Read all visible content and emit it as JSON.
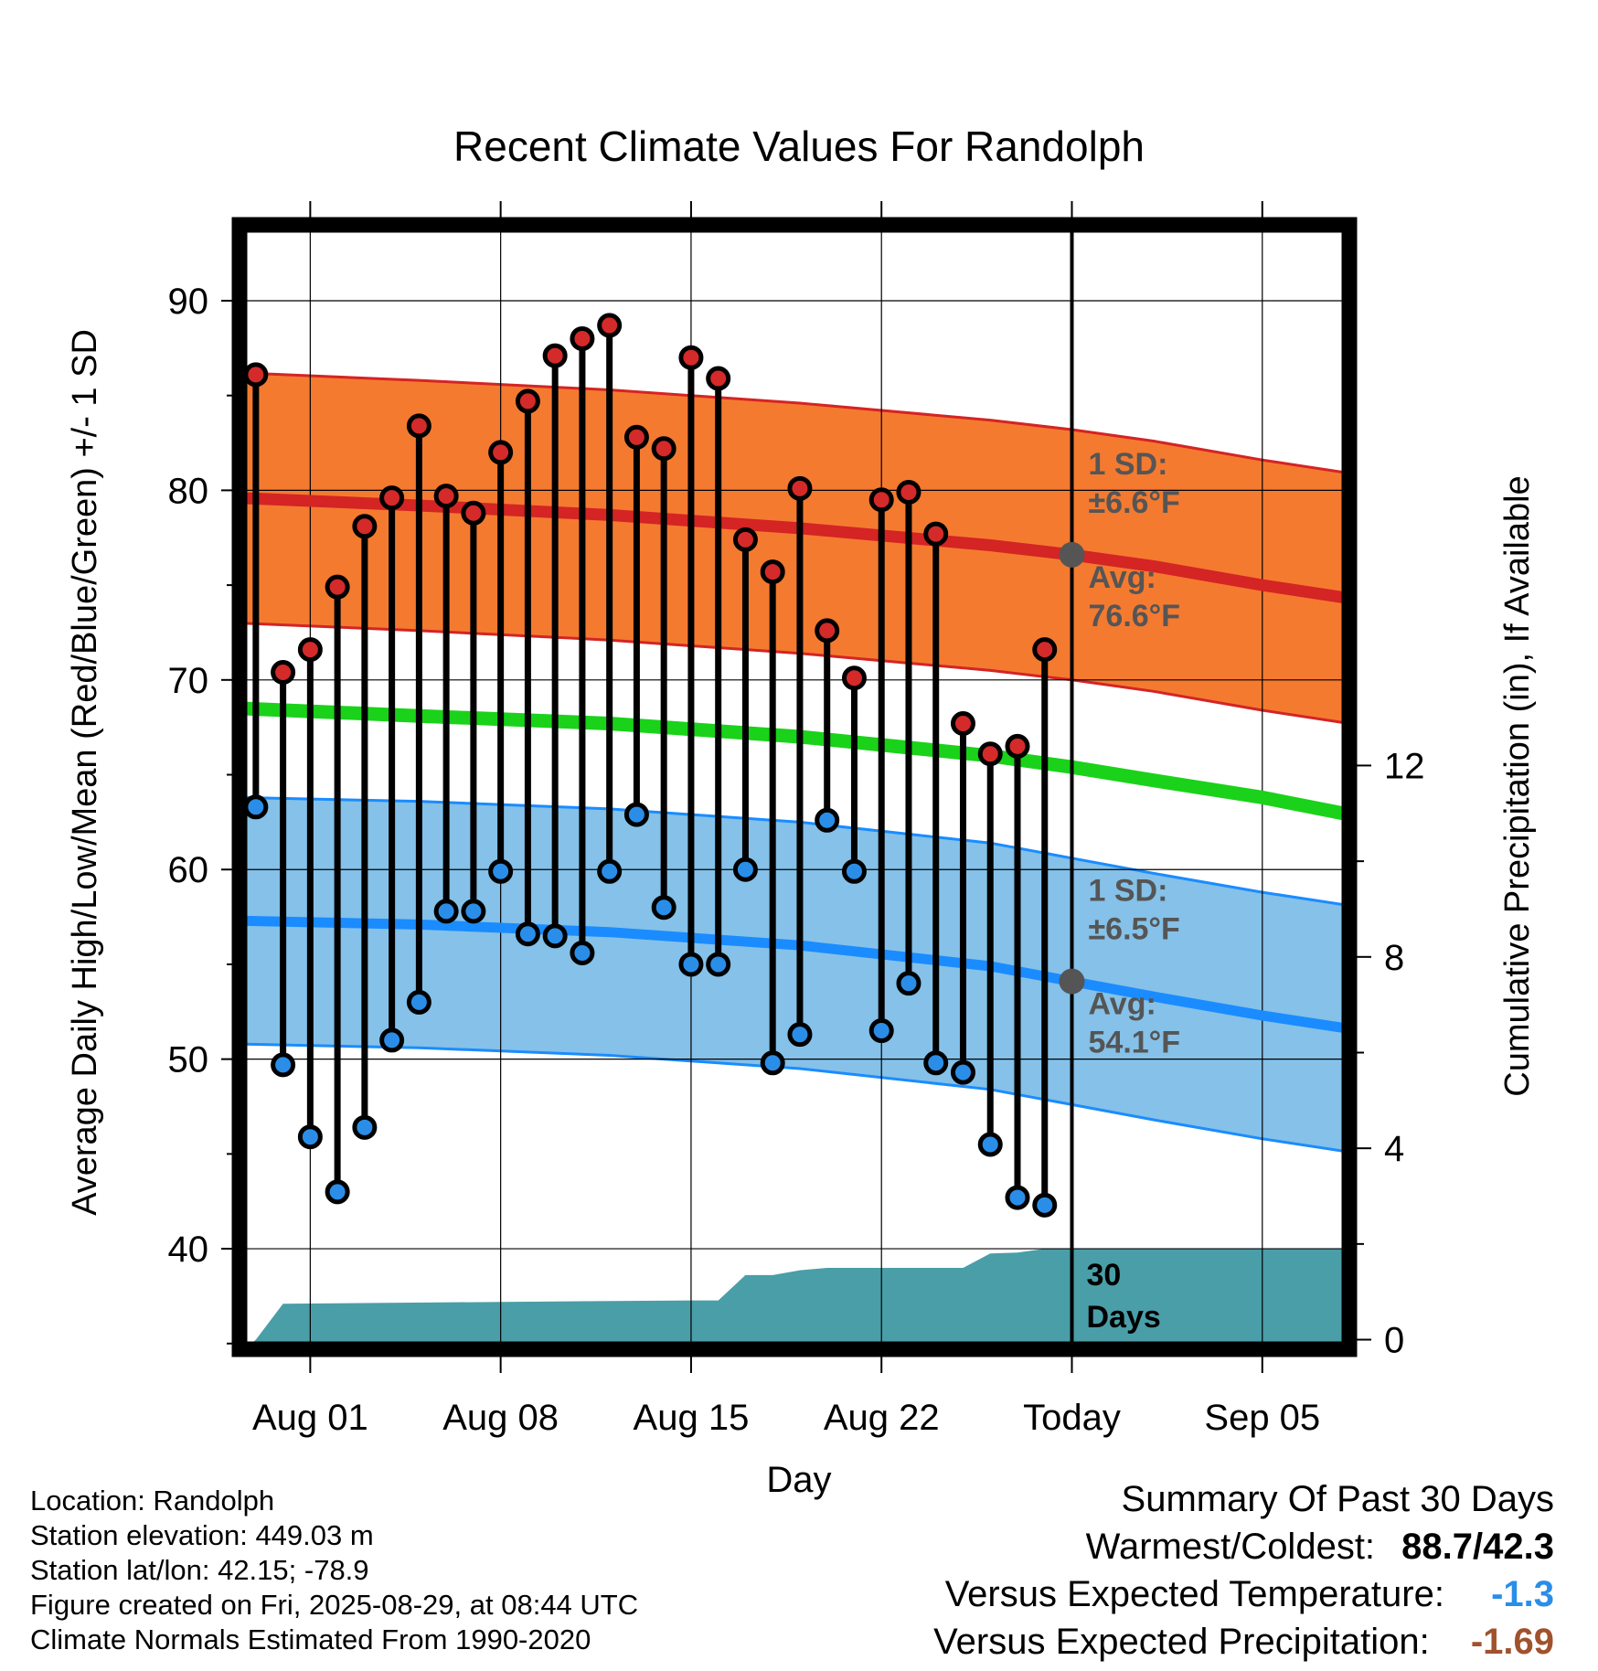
{
  "chart_data": {
    "type": "range-dot",
    "title": "Recent Climate Values For Randolph",
    "xlabel": "Day",
    "ylabel_left": "Average Daily High/Low/Mean (Red/Blue/Green) +/- 1 SD",
    "ylabel_right": "Cumulative Precipitation (in), If Available",
    "x_tick_labels": [
      "Aug 01",
      "Aug 08",
      "Aug 15",
      "Aug 22",
      "Today",
      "Sep 05"
    ],
    "x_tick_days": [
      1,
      8,
      15,
      22,
      29,
      36
    ],
    "x_range_days": [
      -1.6,
      39.2
    ],
    "y_ticks_left": [
      40,
      50,
      60,
      70,
      80,
      90
    ],
    "y_range_left": [
      34.7,
      94
    ],
    "y_ticks_right": [
      0,
      4,
      8,
      12
    ],
    "y_range_right": [
      -0.2,
      23.3
    ],
    "grid": true,
    "days": [
      -1,
      0,
      1,
      2,
      3,
      4,
      5,
      6,
      7,
      8,
      9,
      10,
      11,
      12,
      13,
      14,
      15,
      16,
      17,
      18,
      19,
      20,
      21,
      22,
      23,
      24,
      25,
      26,
      27,
      28
    ],
    "highs": [
      86.1,
      70.4,
      71.6,
      74.9,
      78.1,
      79.6,
      83.4,
      79.7,
      78.8,
      82.0,
      84.7,
      87.1,
      88.0,
      88.7,
      82.8,
      82.2,
      87.0,
      85.9,
      77.4,
      75.7,
      80.1,
      72.6,
      70.1,
      79.5,
      79.9,
      77.7,
      67.7,
      66.1,
      66.5,
      71.6
    ],
    "lows": [
      63.3,
      49.7,
      45.9,
      43.0,
      46.4,
      51.0,
      53.0,
      57.8,
      57.8,
      59.9,
      56.6,
      56.5,
      55.6,
      59.9,
      62.9,
      58.0,
      55.0,
      55.0,
      60.0,
      49.8,
      51.3,
      62.6,
      59.9,
      51.5,
      54.0,
      49.8,
      49.3,
      45.5,
      42.7,
      42.3
    ],
    "normal_days": [
      -1.6,
      5,
      12,
      19,
      26,
      29,
      32,
      36,
      39.2
    ],
    "normal_high": [
      79.6,
      79.2,
      78.7,
      78.0,
      77.1,
      76.6,
      76.0,
      75.0,
      74.3
    ],
    "normal_high_sd": 6.6,
    "normal_low": [
      57.3,
      57.1,
      56.7,
      56.0,
      54.9,
      54.1,
      53.3,
      52.3,
      51.6
    ],
    "normal_low_sd": 6.5,
    "normal_mean": [
      68.5,
      68.1,
      67.7,
      67.0,
      66.0,
      65.4,
      64.7,
      63.8,
      62.9
    ],
    "precip_days": [
      -1.0,
      0.0,
      10.0,
      15.0,
      16.0,
      17.0,
      18.0,
      19.0,
      20.0,
      25.0,
      26.0,
      27.0,
      28.0,
      29.0,
      39.2
    ],
    "precip_cum": [
      0.0,
      0.75,
      0.8,
      0.82,
      0.82,
      1.35,
      1.35,
      1.45,
      1.5,
      1.5,
      1.8,
      1.82,
      1.9,
      1.9,
      1.9
    ],
    "annotations": {
      "high_sd_label": "1 SD:",
      "high_sd_value": "±6.6°F",
      "high_avg_label": "Avg:",
      "high_avg_value": "76.6°F",
      "high_avg": 76.6,
      "low_sd_label": "1 SD:",
      "low_sd_value": "±6.5°F",
      "low_avg_label": "Avg:",
      "low_avg_value": "54.1°F",
      "low_avg": 54.1,
      "window_label_1": "30",
      "window_label_2": "Days"
    },
    "colors": {
      "high_band": "#f47a30",
      "high_line": "#d42424",
      "low_band": "#85c1e8",
      "low_line": "#1a8cff",
      "mean_line": "#1ad21a",
      "precip": "#4a9ea8",
      "high_dot": "#d42a2a",
      "low_dot": "#2a8ee8",
      "today_dot": "#555555",
      "annotation": "#555555"
    }
  },
  "info": {
    "location": "Location: Randolph",
    "elevation": "Station elevation: 449.03 m",
    "latlon": "Station lat/lon: 42.15; -78.9",
    "created": "Figure created on Fri, 2025-08-29, at 08:44 UTC",
    "normals": "Climate Normals Estimated From 1990-2020"
  },
  "summary": {
    "heading": "Summary Of Past 30 Days",
    "warm_cold_label": "Warmest/Coldest:",
    "warm_cold_value": "88.7/42.3",
    "temp_label": "Versus Expected Temperature:",
    "temp_value": "-1.3",
    "temp_color": "#2a8ee8",
    "precip_label": "Versus Expected Precipitation:",
    "precip_value": "-1.69",
    "precip_color": "#a0522d"
  }
}
